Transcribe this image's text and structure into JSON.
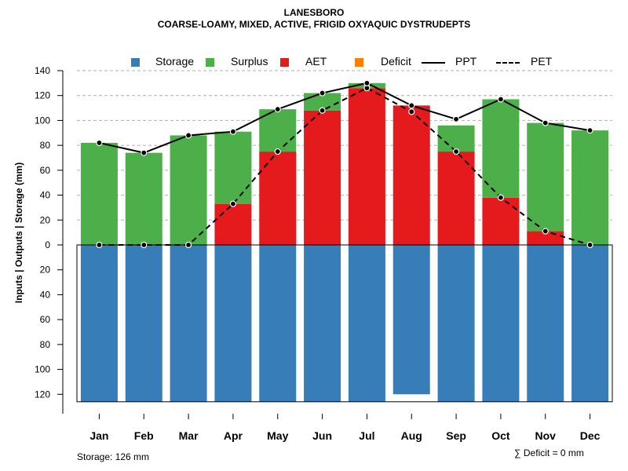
{
  "title_line1": "LANESBORO",
  "title_line2": "COARSE-LOAMY, MIXED, ACTIVE, FRIGID OXYAQUIC DYSTRUDEPTS",
  "legend": {
    "storage": "Storage",
    "surplus": "Surplus",
    "aet": "AET",
    "deficit": "Deficit",
    "ppt": "PPT",
    "pet": "PET"
  },
  "colors": {
    "storage": "#377eb8",
    "surplus": "#4daf4a",
    "aet": "#e41a1c",
    "deficit": "#ff7f00",
    "line": "#000000"
  },
  "footer": {
    "storage_note": "Storage: 126 mm",
    "deficit_note": "∑ Deficit = 0 mm"
  },
  "chart_data": {
    "type": "bar",
    "title": "LANESBORO — COARSE-LOAMY, MIXED, ACTIVE, FRIGID OXYAQUIC DYSTRUDEPTS",
    "xlabel": "",
    "ylabel": "Inputs | Outputs | Storage    (mm)",
    "categories": [
      "Jan",
      "Feb",
      "Mar",
      "Apr",
      "May",
      "Jun",
      "Jul",
      "Aug",
      "Sep",
      "Oct",
      "Nov",
      "Dec"
    ],
    "ylim": [
      -126,
      140
    ],
    "yticks": [
      140,
      120,
      100,
      80,
      60,
      40,
      20,
      0,
      -20,
      -40,
      -60,
      -80,
      -100,
      -120
    ],
    "ytick_labels": [
      "140",
      "120",
      "100",
      "80",
      "60",
      "40",
      "20",
      "0",
      "20",
      "40",
      "60",
      "80",
      "100",
      "120"
    ],
    "grid": true,
    "series": [
      {
        "name": "Storage",
        "kind": "bar",
        "values": [
          126,
          126,
          126,
          126,
          126,
          126,
          126,
          120,
          126,
          126,
          126,
          126
        ]
      },
      {
        "name": "AET",
        "kind": "bar",
        "values": [
          0,
          0,
          0,
          33,
          75,
          108,
          126,
          112,
          75,
          38,
          11,
          0
        ]
      },
      {
        "name": "Surplus",
        "kind": "bar",
        "values": [
          82,
          74,
          88,
          58,
          34,
          14,
          4,
          0,
          21,
          79,
          87,
          92
        ]
      },
      {
        "name": "Deficit",
        "kind": "bar",
        "values": [
          0,
          0,
          0,
          0,
          0,
          0,
          0,
          0,
          0,
          0,
          0,
          0
        ]
      },
      {
        "name": "PPT",
        "kind": "line",
        "values": [
          82,
          74,
          88,
          91,
          109,
          122,
          130,
          112,
          101,
          117,
          98,
          92
        ]
      },
      {
        "name": "PET",
        "kind": "line",
        "values": [
          0,
          0,
          0,
          33,
          75,
          108,
          126,
          107,
          75,
          38,
          11,
          0
        ]
      }
    ]
  }
}
